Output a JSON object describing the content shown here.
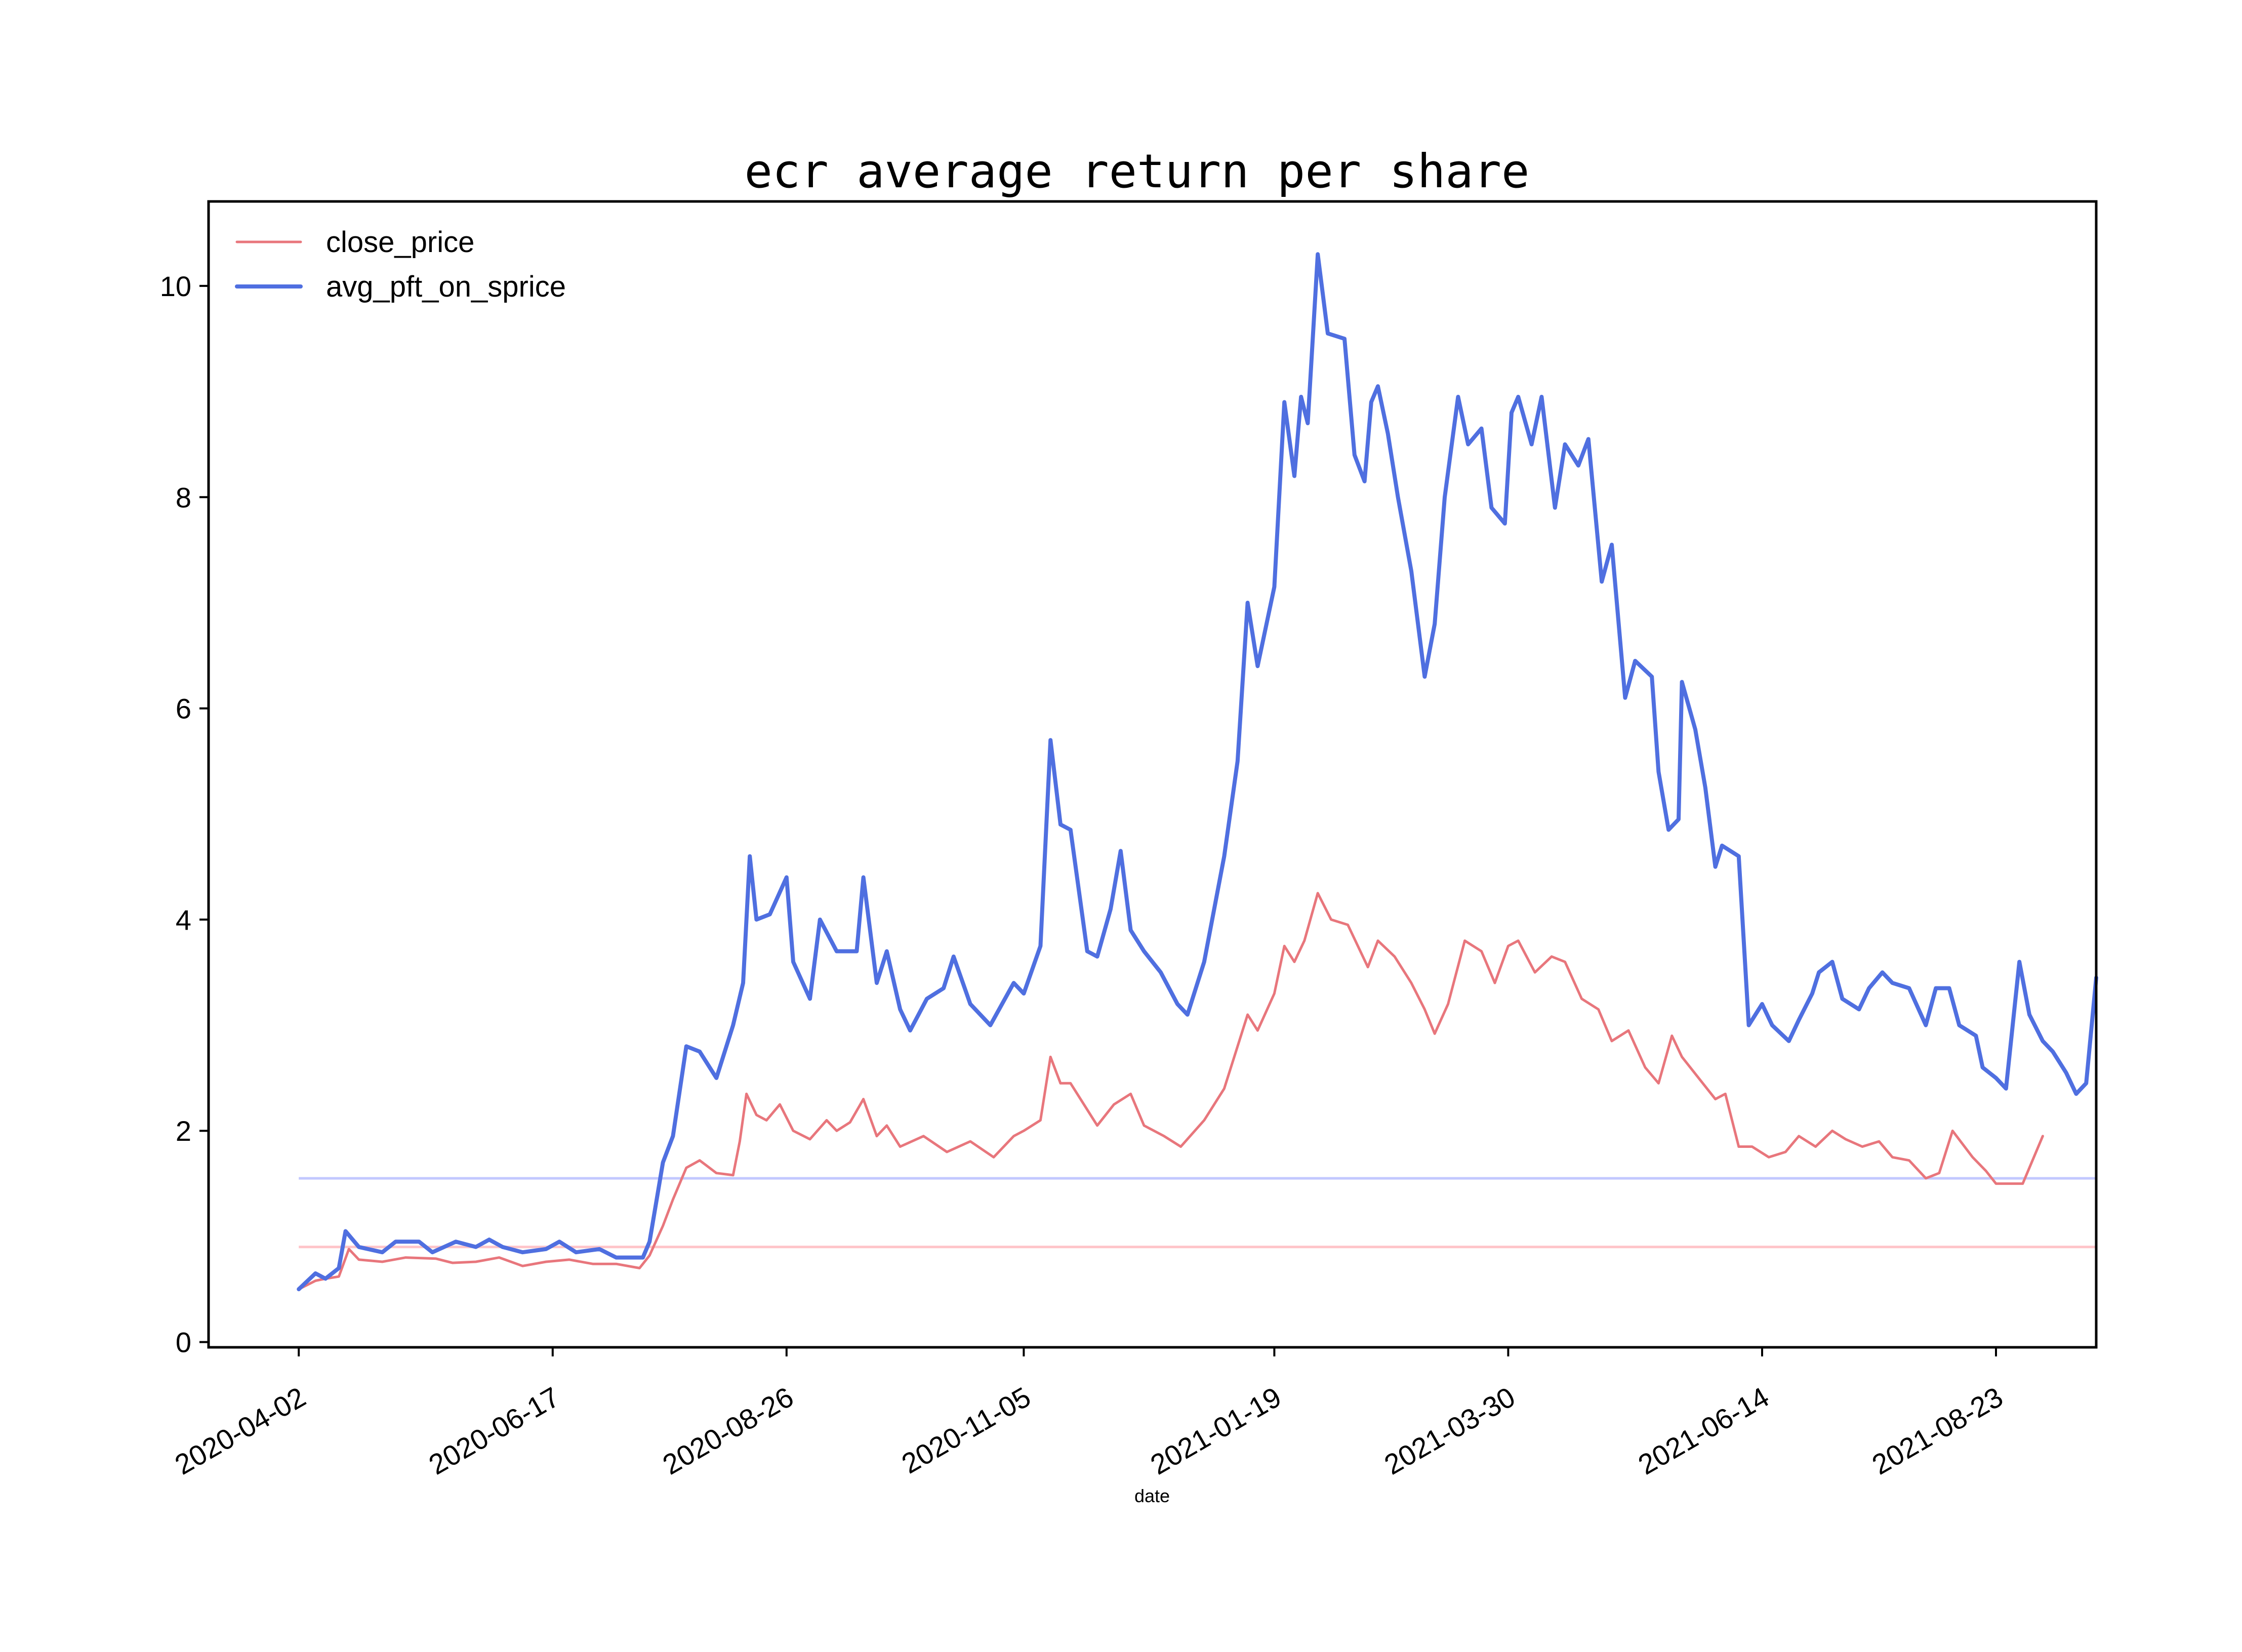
{
  "chart_data": {
    "type": "line",
    "title": "ecr average return per share",
    "xlabel": "date",
    "ylabel": "",
    "x_ticks": [
      "2020-04-02",
      "2020-06-17",
      "2020-08-26",
      "2020-11-05",
      "2021-01-19",
      "2021-03-30",
      "2021-06-14",
      "2021-08-23"
    ],
    "y_ticks": [
      0,
      2,
      4,
      6,
      8,
      10
    ],
    "ylim": [
      -0.05,
      10.8
    ],
    "xlim": [
      "2020-03-06",
      "2021-09-22"
    ],
    "grid": false,
    "legend_position": "top-left",
    "colors": {
      "close_price": "#e8767c",
      "avg_pft_on_sprice": "#4f6fe0",
      "close_price_mean": "#ffc4c8",
      "avg_pft_on_sprice_mean": "#c2c8ff"
    },
    "reference_lines": [
      {
        "series": "close_price",
        "y": 0.9
      },
      {
        "series": "avg_pft_on_sprice",
        "y": 1.55
      }
    ],
    "series": [
      {
        "name": "close_price",
        "points": [
          [
            "2020-04-02",
            0.5
          ],
          [
            "2020-04-07",
            0.58
          ],
          [
            "2020-04-10",
            0.6
          ],
          [
            "2020-04-14",
            0.62
          ],
          [
            "2020-04-17",
            0.88
          ],
          [
            "2020-04-20",
            0.78
          ],
          [
            "2020-04-27",
            0.76
          ],
          [
            "2020-05-04",
            0.8
          ],
          [
            "2020-05-13",
            0.79
          ],
          [
            "2020-05-18",
            0.75
          ],
          [
            "2020-05-25",
            0.76
          ],
          [
            "2020-06-01",
            0.8
          ],
          [
            "2020-06-08",
            0.72
          ],
          [
            "2020-06-15",
            0.76
          ],
          [
            "2020-06-22",
            0.78
          ],
          [
            "2020-06-29",
            0.74
          ],
          [
            "2020-07-06",
            0.74
          ],
          [
            "2020-07-13",
            0.7
          ],
          [
            "2020-07-16",
            0.82
          ],
          [
            "2020-07-20",
            1.1
          ],
          [
            "2020-07-23",
            1.35
          ],
          [
            "2020-07-27",
            1.65
          ],
          [
            "2020-07-31",
            1.72
          ],
          [
            "2020-08-05",
            1.6
          ],
          [
            "2020-08-10",
            1.58
          ],
          [
            "2020-08-12",
            1.9
          ],
          [
            "2020-08-14",
            2.35
          ],
          [
            "2020-08-17",
            2.15
          ],
          [
            "2020-08-20",
            2.1
          ],
          [
            "2020-08-24",
            2.25
          ],
          [
            "2020-08-28",
            2.0
          ],
          [
            "2020-09-02",
            1.92
          ],
          [
            "2020-09-07",
            2.1
          ],
          [
            "2020-09-10",
            2.0
          ],
          [
            "2020-09-14",
            2.08
          ],
          [
            "2020-09-18",
            2.3
          ],
          [
            "2020-09-22",
            1.95
          ],
          [
            "2020-09-25",
            2.05
          ],
          [
            "2020-09-29",
            1.85
          ],
          [
            "2020-10-06",
            1.95
          ],
          [
            "2020-10-13",
            1.8
          ],
          [
            "2020-10-20",
            1.9
          ],
          [
            "2020-10-27",
            1.75
          ],
          [
            "2020-11-02",
            1.95
          ],
          [
            "2020-11-05",
            2.0
          ],
          [
            "2020-11-10",
            2.1
          ],
          [
            "2020-11-13",
            2.7
          ],
          [
            "2020-11-16",
            2.45
          ],
          [
            "2020-11-19",
            2.45
          ],
          [
            "2020-11-24",
            2.2
          ],
          [
            "2020-11-27",
            2.05
          ],
          [
            "2020-12-02",
            2.25
          ],
          [
            "2020-12-07",
            2.35
          ],
          [
            "2020-12-11",
            2.05
          ],
          [
            "2020-12-17",
            1.95
          ],
          [
            "2020-12-22",
            1.85
          ],
          [
            "2020-12-29",
            2.1
          ],
          [
            "2021-01-04",
            2.4
          ],
          [
            "2021-01-07",
            2.7
          ],
          [
            "2021-01-11",
            3.1
          ],
          [
            "2021-01-14",
            2.95
          ],
          [
            "2021-01-19",
            3.3
          ],
          [
            "2021-01-22",
            3.75
          ],
          [
            "2021-01-25",
            3.6
          ],
          [
            "2021-01-28",
            3.8
          ],
          [
            "2021-02-01",
            4.25
          ],
          [
            "2021-02-05",
            4.0
          ],
          [
            "2021-02-10",
            3.95
          ],
          [
            "2021-02-16",
            3.55
          ],
          [
            "2021-02-19",
            3.8
          ],
          [
            "2021-02-24",
            3.65
          ],
          [
            "2021-03-01",
            3.4
          ],
          [
            "2021-03-05",
            3.15
          ],
          [
            "2021-03-08",
            2.92
          ],
          [
            "2021-03-12",
            3.2
          ],
          [
            "2021-03-17",
            3.8
          ],
          [
            "2021-03-22",
            3.7
          ],
          [
            "2021-03-26",
            3.4
          ],
          [
            "2021-03-30",
            3.75
          ],
          [
            "2021-04-02",
            3.8
          ],
          [
            "2021-04-07",
            3.5
          ],
          [
            "2021-04-12",
            3.65
          ],
          [
            "2021-04-16",
            3.6
          ],
          [
            "2021-04-21",
            3.25
          ],
          [
            "2021-04-26",
            3.15
          ],
          [
            "2021-04-30",
            2.85
          ],
          [
            "2021-05-05",
            2.95
          ],
          [
            "2021-05-10",
            2.6
          ],
          [
            "2021-05-14",
            2.45
          ],
          [
            "2021-05-18",
            2.9
          ],
          [
            "2021-05-21",
            2.7
          ],
          [
            "2021-05-26",
            2.5
          ],
          [
            "2021-05-31",
            2.3
          ],
          [
            "2021-06-03",
            2.35
          ],
          [
            "2021-06-07",
            1.85
          ],
          [
            "2021-06-11",
            1.85
          ],
          [
            "2021-06-16",
            1.75
          ],
          [
            "2021-06-21",
            1.8
          ],
          [
            "2021-06-25",
            1.95
          ],
          [
            "2021-06-30",
            1.85
          ],
          [
            "2021-07-05",
            2.0
          ],
          [
            "2021-07-09",
            1.92
          ],
          [
            "2021-07-14",
            1.85
          ],
          [
            "2021-07-19",
            1.9
          ],
          [
            "2021-07-23",
            1.75
          ],
          [
            "2021-07-28",
            1.72
          ],
          [
            "2021-08-02",
            1.55
          ],
          [
            "2021-08-06",
            1.6
          ],
          [
            "2021-08-10",
            2.0
          ],
          [
            "2021-08-16",
            1.75
          ],
          [
            "2021-08-20",
            1.62
          ],
          [
            "2021-08-23",
            1.5
          ],
          [
            "2021-08-27",
            1.5
          ],
          [
            "2021-08-31",
            1.5
          ],
          [
            "2021-09-06",
            1.95
          ]
        ]
      },
      {
        "name": "avg_pft_on_sprice",
        "points": [
          [
            "2020-04-02",
            0.5
          ],
          [
            "2020-04-07",
            0.65
          ],
          [
            "2020-04-10",
            0.6
          ],
          [
            "2020-04-14",
            0.7
          ],
          [
            "2020-04-16",
            1.05
          ],
          [
            "2020-04-20",
            0.9
          ],
          [
            "2020-04-27",
            0.85
          ],
          [
            "2020-05-01",
            0.95
          ],
          [
            "2020-05-08",
            0.95
          ],
          [
            "2020-05-12",
            0.85
          ],
          [
            "2020-05-19",
            0.95
          ],
          [
            "2020-05-25",
            0.9
          ],
          [
            "2020-05-29",
            0.97
          ],
          [
            "2020-06-02",
            0.9
          ],
          [
            "2020-06-08",
            0.85
          ],
          [
            "2020-06-15",
            0.88
          ],
          [
            "2020-06-19",
            0.95
          ],
          [
            "2020-06-24",
            0.85
          ],
          [
            "2020-07-01",
            0.88
          ],
          [
            "2020-07-06",
            0.8
          ],
          [
            "2020-07-14",
            0.8
          ],
          [
            "2020-07-16",
            0.95
          ],
          [
            "2020-07-20",
            1.7
          ],
          [
            "2020-07-23",
            1.95
          ],
          [
            "2020-07-27",
            2.8
          ],
          [
            "2020-07-31",
            2.75
          ],
          [
            "2020-08-05",
            2.5
          ],
          [
            "2020-08-10",
            3.0
          ],
          [
            "2020-08-13",
            3.4
          ],
          [
            "2020-08-15",
            4.6
          ],
          [
            "2020-08-17",
            4.0
          ],
          [
            "2020-08-21",
            4.05
          ],
          [
            "2020-08-26",
            4.4
          ],
          [
            "2020-08-28",
            3.6
          ],
          [
            "2020-09-02",
            3.25
          ],
          [
            "2020-09-05",
            4.0
          ],
          [
            "2020-09-10",
            3.7
          ],
          [
            "2020-09-16",
            3.7
          ],
          [
            "2020-09-18",
            4.4
          ],
          [
            "2020-09-22",
            3.4
          ],
          [
            "2020-09-25",
            3.7
          ],
          [
            "2020-09-29",
            3.15
          ],
          [
            "2020-10-02",
            2.95
          ],
          [
            "2020-10-07",
            3.25
          ],
          [
            "2020-10-12",
            3.35
          ],
          [
            "2020-10-15",
            3.65
          ],
          [
            "2020-10-20",
            3.2
          ],
          [
            "2020-10-26",
            3.0
          ],
          [
            "2020-11-02",
            3.4
          ],
          [
            "2020-11-05",
            3.3
          ],
          [
            "2020-11-10",
            3.75
          ],
          [
            "2020-11-13",
            5.7
          ],
          [
            "2020-11-16",
            4.9
          ],
          [
            "2020-11-19",
            4.85
          ],
          [
            "2020-11-24",
            3.7
          ],
          [
            "2020-11-27",
            3.65
          ],
          [
            "2020-12-01",
            4.1
          ],
          [
            "2020-12-04",
            4.65
          ],
          [
            "2020-12-07",
            3.9
          ],
          [
            "2020-12-11",
            3.7
          ],
          [
            "2020-12-16",
            3.5
          ],
          [
            "2020-12-21",
            3.2
          ],
          [
            "2020-12-24",
            3.1
          ],
          [
            "2020-12-29",
            3.6
          ],
          [
            "2021-01-04",
            4.6
          ],
          [
            "2021-01-08",
            5.5
          ],
          [
            "2021-01-11",
            7.0
          ],
          [
            "2021-01-14",
            6.4
          ],
          [
            "2021-01-19",
            7.15
          ],
          [
            "2021-01-22",
            8.9
          ],
          [
            "2021-01-25",
            8.2
          ],
          [
            "2021-01-27",
            8.95
          ],
          [
            "2021-01-29",
            8.7
          ],
          [
            "2021-02-01",
            10.3
          ],
          [
            "2021-02-04",
            9.55
          ],
          [
            "2021-02-09",
            9.5
          ],
          [
            "2021-02-12",
            8.4
          ],
          [
            "2021-02-15",
            8.15
          ],
          [
            "2021-02-17",
            8.9
          ],
          [
            "2021-02-19",
            9.05
          ],
          [
            "2021-02-22",
            8.6
          ],
          [
            "2021-02-25",
            8.0
          ],
          [
            "2021-03-01",
            7.3
          ],
          [
            "2021-03-05",
            6.3
          ],
          [
            "2021-03-08",
            6.8
          ],
          [
            "2021-03-11",
            8.0
          ],
          [
            "2021-03-15",
            8.95
          ],
          [
            "2021-03-18",
            8.5
          ],
          [
            "2021-03-22",
            8.65
          ],
          [
            "2021-03-25",
            7.9
          ],
          [
            "2021-03-29",
            7.75
          ],
          [
            "2021-03-31",
            8.8
          ],
          [
            "2021-04-02",
            8.95
          ],
          [
            "2021-04-06",
            8.5
          ],
          [
            "2021-04-09",
            8.95
          ],
          [
            "2021-04-13",
            7.9
          ],
          [
            "2021-04-16",
            8.5
          ],
          [
            "2021-04-20",
            8.3
          ],
          [
            "2021-04-23",
            8.55
          ],
          [
            "2021-04-27",
            7.2
          ],
          [
            "2021-04-30",
            7.55
          ],
          [
            "2021-05-04",
            6.1
          ],
          [
            "2021-05-07",
            6.45
          ],
          [
            "2021-05-12",
            6.3
          ],
          [
            "2021-05-14",
            5.4
          ],
          [
            "2021-05-17",
            4.85
          ],
          [
            "2021-05-20",
            4.95
          ],
          [
            "2021-05-21",
            6.25
          ],
          [
            "2021-05-25",
            5.8
          ],
          [
            "2021-05-28",
            5.25
          ],
          [
            "2021-05-31",
            4.5
          ],
          [
            "2021-06-02",
            4.7
          ],
          [
            "2021-06-07",
            4.6
          ],
          [
            "2021-06-10",
            3.0
          ],
          [
            "2021-06-14",
            3.2
          ],
          [
            "2021-06-17",
            3.0
          ],
          [
            "2021-06-22",
            2.85
          ],
          [
            "2021-06-25",
            3.05
          ],
          [
            "2021-06-29",
            3.3
          ],
          [
            "2021-07-01",
            3.5
          ],
          [
            "2021-07-05",
            3.6
          ],
          [
            "2021-07-08",
            3.25
          ],
          [
            "2021-07-13",
            3.15
          ],
          [
            "2021-07-16",
            3.35
          ],
          [
            "2021-07-20",
            3.5
          ],
          [
            "2021-07-23",
            3.4
          ],
          [
            "2021-07-28",
            3.35
          ],
          [
            "2021-08-02",
            3.0
          ],
          [
            "2021-08-05",
            3.35
          ],
          [
            "2021-08-09",
            3.35
          ],
          [
            "2021-08-12",
            3.0
          ],
          [
            "2021-08-17",
            2.9
          ],
          [
            "2021-08-19",
            2.6
          ],
          [
            "2021-08-23",
            2.5
          ],
          [
            "2021-08-26",
            2.4
          ],
          [
            "2021-08-30",
            3.6
          ],
          [
            "2021-09-02",
            3.1
          ],
          [
            "2021-09-06",
            2.85
          ],
          [
            "2021-09-09",
            2.75
          ],
          [
            "2021-09-13",
            2.55
          ],
          [
            "2021-09-16",
            2.35
          ],
          [
            "2021-09-19",
            2.45
          ],
          [
            "2021-09-22",
            3.45
          ]
        ]
      }
    ]
  }
}
